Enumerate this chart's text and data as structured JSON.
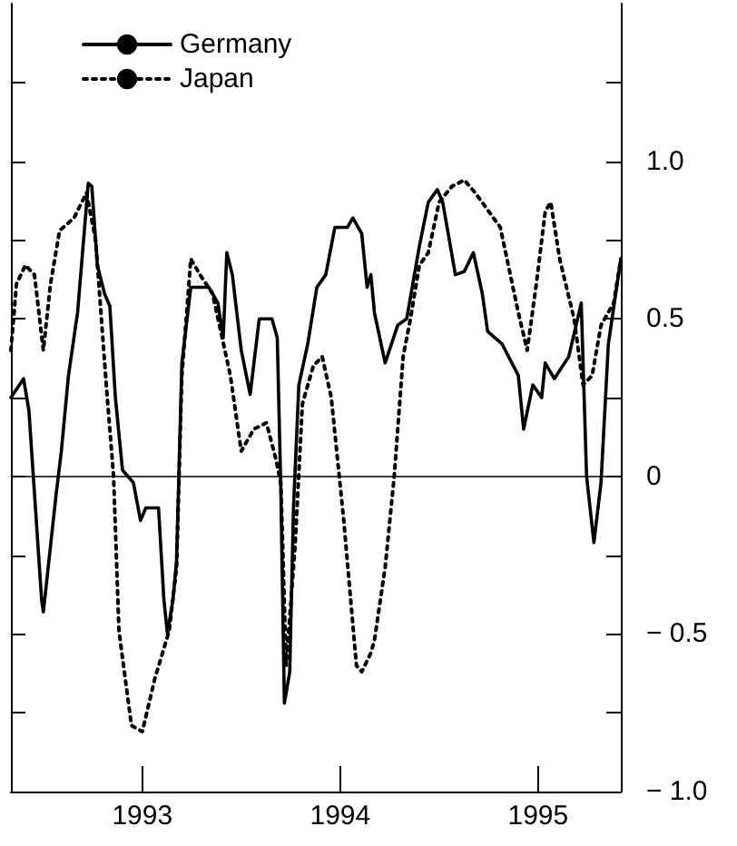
{
  "chart_data": {
    "type": "line",
    "legend": "top left",
    "grid": false,
    "marker": "none",
    "xlim": [
      1992.336,
      1995.418
    ],
    "xticks": [
      {
        "value": 1993,
        "label": "1993"
      },
      {
        "value": 1994,
        "label": "1994"
      },
      {
        "value": 1995,
        "label": "1995"
      }
    ],
    "ylim": [
      -1,
      1.5
    ],
    "yticks": [
      {
        "value": -1,
        "label": "− 1.0"
      },
      {
        "value": -0.75,
        "label": null
      },
      {
        "value": -0.5,
        "label": "− 0.5"
      },
      {
        "value": -0.25,
        "label": null
      },
      {
        "value": 0,
        "label": "0"
      },
      {
        "value": 0.25,
        "label": null
      },
      {
        "value": 0.5,
        "label": "0.5"
      },
      {
        "value": 0.75,
        "label": null
      },
      {
        "value": 1,
        "label": "1.0"
      },
      {
        "value": 1.25,
        "label": null
      }
    ],
    "ref_lines": [
      {
        "axis": "y",
        "value": 0,
        "color": "#000000"
      }
    ],
    "series": [
      {
        "name": "Germany",
        "color": "#000000",
        "line_style": "solid",
        "x": [
          1992.336,
          1992.4,
          1992.427,
          1992.491,
          1992.5,
          1992.564,
          1992.591,
          1992.627,
          1992.673,
          1992.727,
          1992.745,
          1992.773,
          1992.809,
          1992.836,
          1992.864,
          1992.9,
          1992.955,
          1992.991,
          1993.018,
          1993.082,
          1993.109,
          1993.127,
          1993.155,
          1993.173,
          1993.2,
          1993.245,
          1993.336,
          1993.382,
          1993.409,
          1993.427,
          1993.455,
          1993.5,
          1993.545,
          1993.591,
          1993.655,
          1993.682,
          1993.7,
          1993.718,
          1993.745,
          1993.764,
          1993.791,
          1993.836,
          1993.882,
          1993.927,
          1993.973,
          1994.036,
          1994.064,
          1994.109,
          1994.136,
          1994.155,
          1994.173,
          1994.227,
          1994.291,
          1994.336,
          1994.4,
          1994.445,
          1994.491,
          1994.518,
          1994.582,
          1994.627,
          1994.673,
          1994.718,
          1994.745,
          1994.818,
          1994.9,
          1994.927,
          1994.973,
          1995.018,
          1995.036,
          1995.082,
          1995.155,
          1995.218,
          1995.245,
          1995.282,
          1995.318,
          1995.355,
          1995.418
        ],
        "values": [
          0.25,
          0.31,
          0.21,
          -0.39,
          -0.43,
          -0.06,
          0.08,
          0.32,
          0.52,
          0.93,
          0.92,
          0.67,
          0.58,
          0.54,
          0.25,
          0.02,
          -0.02,
          -0.14,
          -0.1,
          -0.1,
          -0.39,
          -0.5,
          -0.39,
          -0.27,
          0.36,
          0.6,
          0.6,
          0.55,
          0.44,
          0.71,
          0.64,
          0.4,
          0.26,
          0.5,
          0.5,
          0.44,
          -0.04,
          -0.72,
          -0.62,
          -0.1,
          0.29,
          0.42,
          0.6,
          0.64,
          0.79,
          0.79,
          0.82,
          0.77,
          0.6,
          0.64,
          0.52,
          0.36,
          0.48,
          0.5,
          0.73,
          0.87,
          0.91,
          0.87,
          0.64,
          0.65,
          0.71,
          0.58,
          0.46,
          0.42,
          0.32,
          0.15,
          0.29,
          0.25,
          0.36,
          0.31,
          0.38,
          0.55,
          0,
          -0.21,
          -0.02,
          0.42,
          0.69
        ]
      },
      {
        "name": "Japan",
        "color": "#000000",
        "line_style": "dotted",
        "x": [
          1992.336,
          1992.364,
          1992.409,
          1992.455,
          1992.5,
          1992.536,
          1992.582,
          1992.655,
          1992.718,
          1992.764,
          1992.818,
          1992.855,
          1992.882,
          1992.945,
          1993.0,
          1993.064,
          1993.136,
          1993.173,
          1993.2,
          1993.245,
          1993.291,
          1993.355,
          1993.445,
          1993.5,
          1993.564,
          1993.627,
          1993.673,
          1993.7,
          1993.727,
          1993.773,
          1993.809,
          1993.864,
          1993.909,
          1993.955,
          1994.018,
          1994.082,
          1994.109,
          1994.155,
          1994.173,
          1994.227,
          1994.273,
          1994.318,
          1994.355,
          1994.4,
          1994.445,
          1994.5,
          1994.564,
          1994.627,
          1994.682,
          1994.809,
          1994.9,
          1994.945,
          1994.991,
          1995.036,
          1995.064,
          1995.109,
          1995.182,
          1995.227,
          1995.273,
          1995.318,
          1995.382,
          1995.418
        ],
        "values": [
          0.4,
          0.61,
          0.67,
          0.64,
          0.4,
          0.61,
          0.78,
          0.82,
          0.9,
          0.75,
          0.29,
          0,
          -0.49,
          -0.79,
          -0.81,
          -0.64,
          -0.49,
          -0.29,
          0.32,
          0.69,
          0.64,
          0.58,
          0.32,
          0.08,
          0.15,
          0.17,
          0.06,
          -0.02,
          -0.6,
          -0.21,
          0.23,
          0.35,
          0.38,
          0.25,
          -0.14,
          -0.6,
          -0.62,
          -0.56,
          -0.52,
          -0.29,
          0,
          0.38,
          0.5,
          0.67,
          0.71,
          0.87,
          0.92,
          0.94,
          0.9,
          0.79,
          0.52,
          0.4,
          0.61,
          0.84,
          0.87,
          0.69,
          0.5,
          0.29,
          0.32,
          0.48,
          0.55,
          0.69
        ]
      }
    ]
  }
}
